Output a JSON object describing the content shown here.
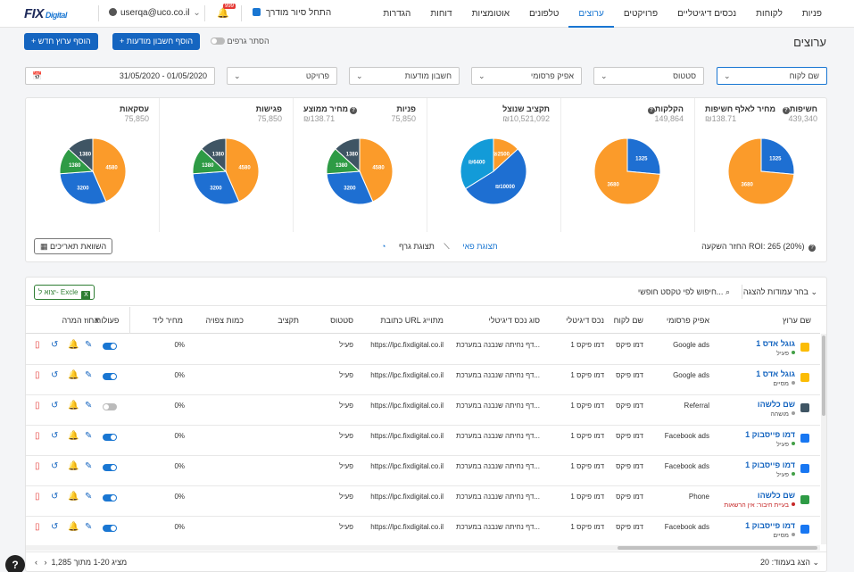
{
  "header": {
    "logo": "FIX",
    "logo_sub": "Digital",
    "user": "userqa@uco.co.il",
    "notif_count": "999",
    "tour": "התחל סיור מודרך",
    "nav": [
      "פניות",
      "לקוחות",
      "נכסים דיגיטליים",
      "פרויקטים",
      "ערוצים",
      "טלפונים",
      "אוטומציות",
      "דוחות",
      "הגדרות"
    ]
  },
  "page": {
    "title": "ערוצים",
    "add_channel": "+ הוסף ערוץ חדש",
    "add_account": "+ הוסף חשבון מודעות",
    "hide_graphs": "הסתר גרפים"
  },
  "filters": {
    "client": "שם לקוח",
    "status": "סטטוס",
    "ad_platform": "אפיק פרסומי",
    "ad_account": "חשבון מודעות",
    "project": "פרויקט",
    "date_range": "31/05/2020 - 01/05/2020"
  },
  "kpis": [
    {
      "title": "חשיפות",
      "value": "439,340",
      "sub_title": "מחיר לאלף חשיפות",
      "sub_value": "₪138.71",
      "pie": [
        1325,
        3680
      ],
      "colors": [
        "#1e6fd2",
        "#fb9b2a"
      ]
    },
    {
      "title": "הקלקות",
      "value": "149,864",
      "sub_title": "",
      "sub_value": "",
      "pie": [
        1325,
        3680
      ],
      "colors": [
        "#1e6fd2",
        "#fb9b2a"
      ]
    },
    {
      "title": "תקציב שנוצל",
      "value": "₪10,521,092",
      "sub_title": "",
      "sub_value": "",
      "pie": [
        2500,
        10000,
        6400
      ],
      "labels": [
        "₪2500",
        "₪10000",
        "₪6400"
      ],
      "colors": [
        "#fb9b2a",
        "#1e6fd2",
        "#139bd8"
      ]
    },
    {
      "title": "פניות",
      "value": "75,850",
      "sub_title": "מחיר ממוצע",
      "sub_value": "₪138.71",
      "pie": [
        4580,
        3200,
        1380,
        1380
      ],
      "colors": [
        "#fb9b2a",
        "#1e6fd2",
        "#2e9b45",
        "#3f5564"
      ]
    },
    {
      "title": "פגישות",
      "value": "75,850",
      "sub_title": "",
      "sub_value": "",
      "pie": [
        4580,
        3200,
        1380,
        1380
      ],
      "colors": [
        "#fb9b2a",
        "#1e6fd2",
        "#2e9b45",
        "#3f5564"
      ]
    },
    {
      "title": "עסקאות",
      "value": "75,850",
      "sub_title": "",
      "sub_value": "",
      "pie": [
        4580,
        3200,
        1380,
        1380
      ],
      "colors": [
        "#fb9b2a",
        "#1e6fd2",
        "#2e9b45",
        "#3f5564"
      ]
    }
  ],
  "kpi_footer": {
    "roi": "החזר השקעה ROI: 265 (20%)",
    "pie_view": "תצוגת פאי",
    "graph_view": "תצוגת גרף",
    "compare": "השוואת תאריכים"
  },
  "table": {
    "columns_select": "בחר עמודות להצגה",
    "search": "חיפוש לפי טקסט חופשי...",
    "excel": "יצוא ל- Excle",
    "headers": [
      "שם ערוץ",
      "אפיק פרסומי",
      "שם לקוח",
      "נכס דיגיטלי",
      "סוג נכס דיגיטלי",
      "כתובת URL מתוייג",
      "סטטוס",
      "תקציב",
      "כמות צפויה",
      "מחיר ליד",
      "אחוז המרה",
      "פעולות"
    ],
    "rows": [
      {
        "name": "גוגל אדס 1",
        "status_label": "פעיל",
        "dot": "green",
        "platform": "Google ads",
        "client": "דמו פיקס",
        "asset": "דמו פיקס 1",
        "asset_type": "דף נחיתה שנבנה במערכת...",
        "url": "https://lpc.fixdigital.co.il",
        "status": "פעיל",
        "conv": "0%",
        "active": true
      },
      {
        "name": "גוגל אדס 1",
        "status_label": "מסיים",
        "dot": "gray",
        "platform": "Google ads",
        "client": "דמו פיקס",
        "asset": "דמו פיקס 1",
        "asset_type": "דף נחיתה שנבנה במערכת...",
        "url": "https://lpc.fixdigital.co.il",
        "status": "פעיל",
        "conv": "0%",
        "active": true
      },
      {
        "name": "שם כלשהו",
        "status_label": "מושהה",
        "dot": "gray",
        "platform": "Referral",
        "client": "דמו פיקס",
        "asset": "דמו פיקס 1",
        "asset_type": "דף נחיתה שנבנה במערכת...",
        "url": "https://lpc.fixdigital.co.il",
        "status": "פעיל",
        "conv": "0%",
        "active": false
      },
      {
        "name": "דמו פייסבוק 1",
        "status_label": "פעיל",
        "dot": "green",
        "platform": "Facebook ads",
        "client": "דמו פיקס",
        "asset": "דמו פיקס 1",
        "asset_type": "דף נחיתה שנבנה במערכת...",
        "url": "https://lpc.fixdigital.co.il",
        "status": "פעיל",
        "conv": "0%",
        "active": true
      },
      {
        "name": "דמו פייסבוק 1",
        "status_label": "פעיל",
        "dot": "green",
        "platform": "Facebook ads",
        "client": "דמו פיקס",
        "asset": "דמו פיקס 1",
        "asset_type": "דף נחיתה שנבנה במערכת...",
        "url": "https://lpc.fixdigital.co.il",
        "status": "פעיל",
        "conv": "0%",
        "active": true
      },
      {
        "name": "שם כלשהו",
        "status_label": "בעיית חיבור: אין הרשאות",
        "dot": "red",
        "platform": "Phone",
        "client": "דמו פיקס",
        "asset": "דמו פיקס 1",
        "asset_type": "דף נחיתה שנבנה במערכת...",
        "url": "https://lpc.fixdigital.co.il",
        "status": "פעיל",
        "conv": "0%",
        "active": true
      },
      {
        "name": "דמו פייסבוק 1",
        "status_label": "מסיים",
        "dot": "gray",
        "platform": "Facebook ads",
        "client": "דמו פיקס",
        "asset": "דמו פיקס 1",
        "asset_type": "דף נחיתה שנבנה במערכת...",
        "url": "https://lpc.fixdigital.co.il",
        "status": "פעיל",
        "conv": "0%",
        "active": true
      }
    ],
    "per_page": "הצג בעמוד: 20",
    "pagination": "מציג 1-20 מתוך 1,285"
  },
  "colors": {
    "primary": "#1565c0",
    "accent": "#1976d2",
    "green": "#2e7d32",
    "red": "#e53935"
  }
}
